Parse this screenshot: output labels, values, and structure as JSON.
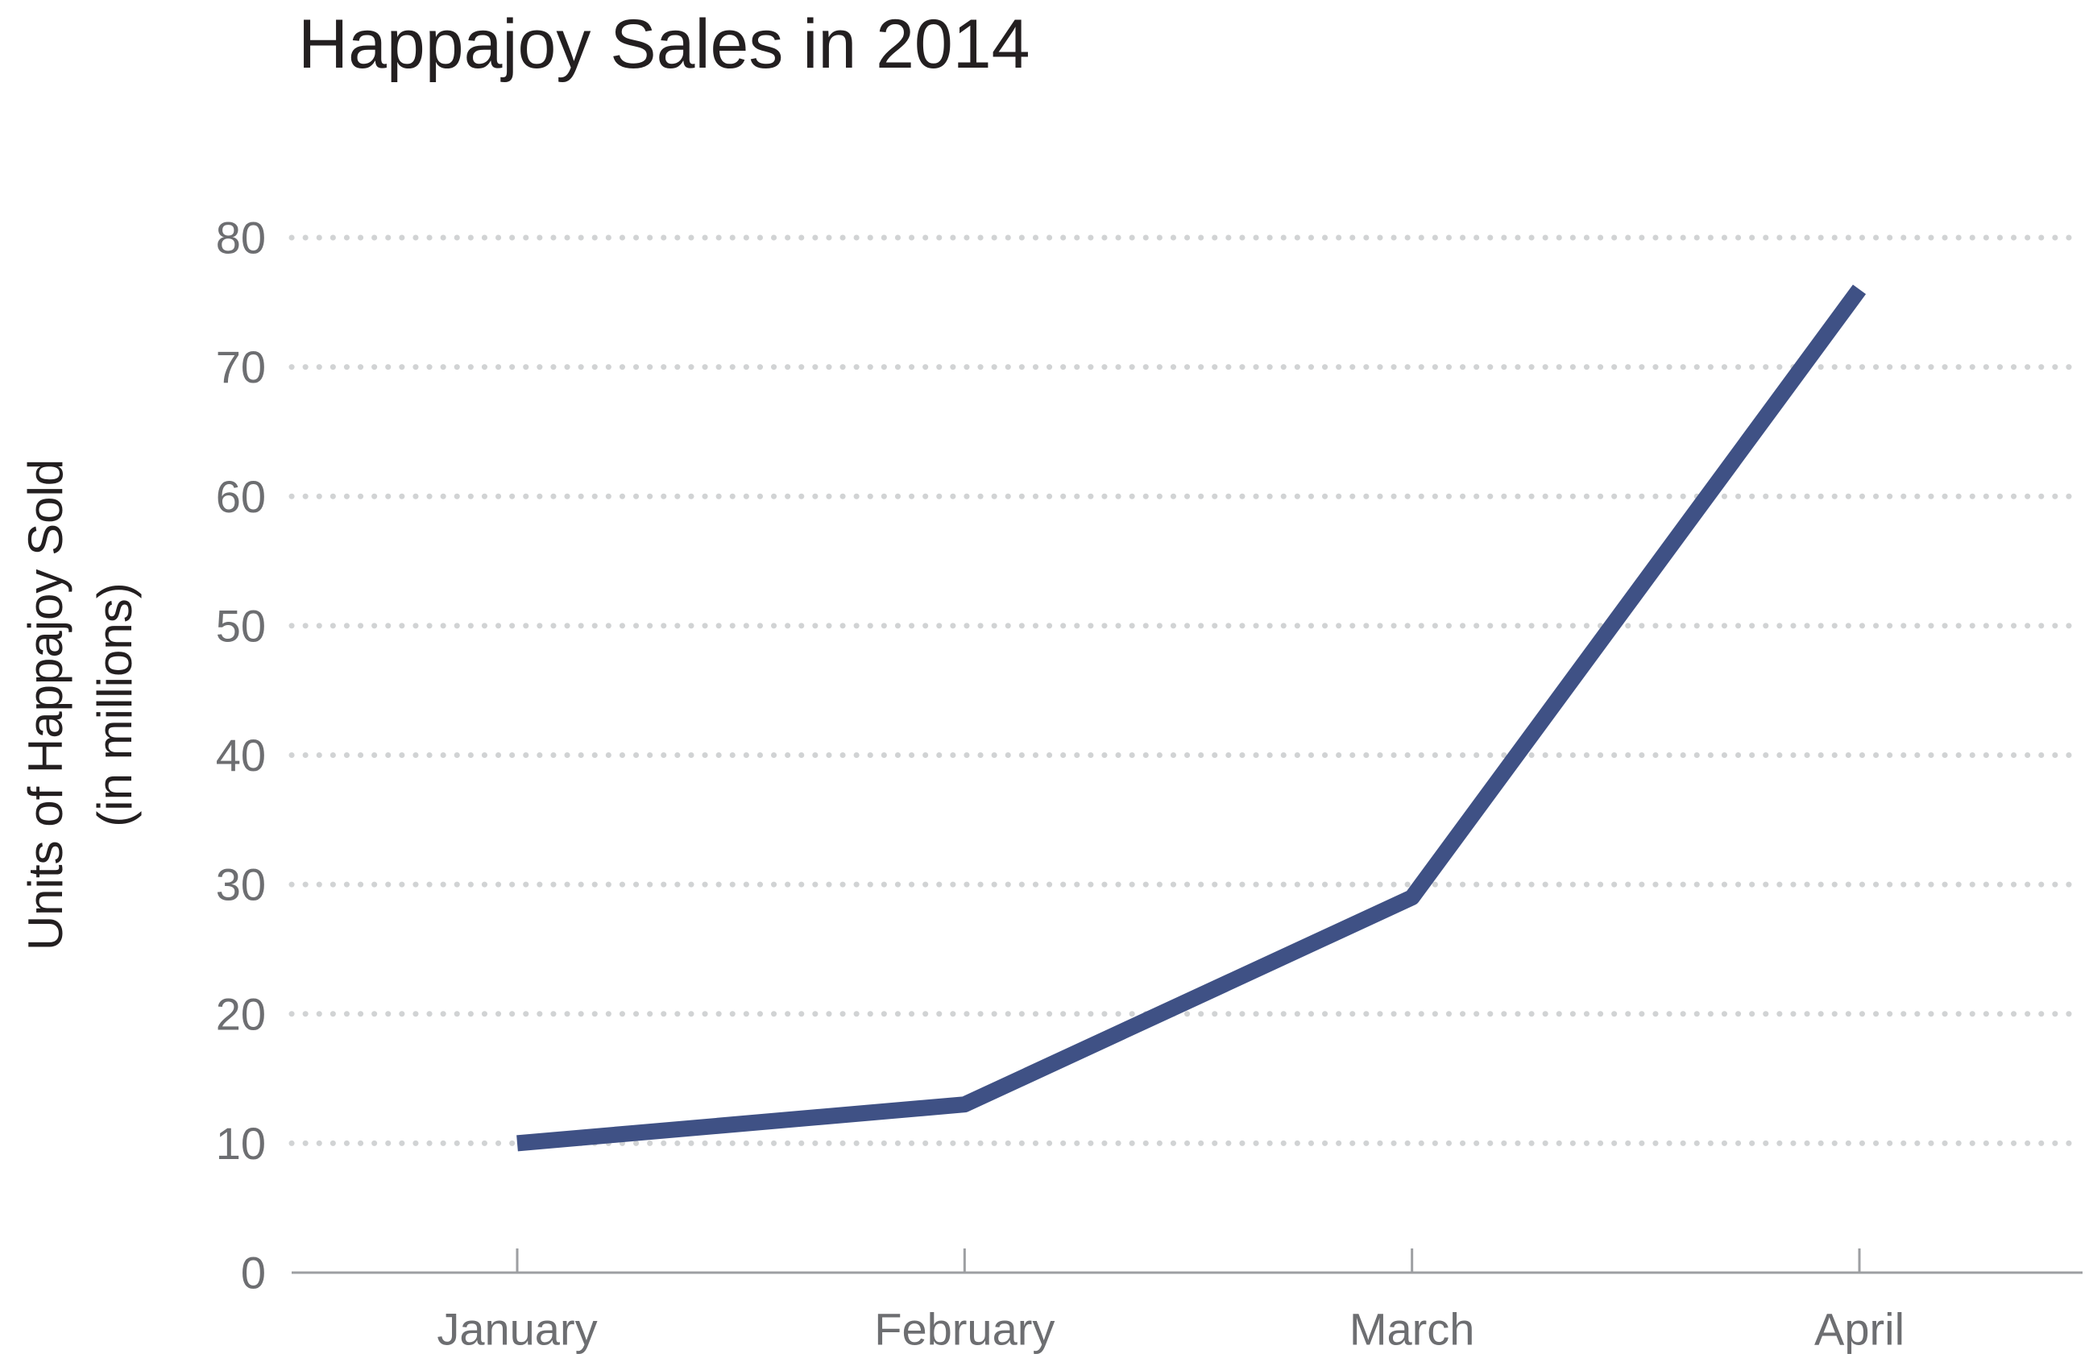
{
  "chart_data": {
    "type": "line",
    "title": "Happajoy Sales in 2014",
    "ylabel_lines": [
      "Units of Happajoy Sold",
      "(in millions)"
    ],
    "xlabel": "",
    "categories": [
      "January",
      "February",
      "March",
      "April"
    ],
    "series": [
      {
        "values": [
          10,
          13,
          29,
          76
        ]
      }
    ],
    "ylim": [
      0,
      80
    ],
    "yticks": [
      0,
      10,
      20,
      30,
      40,
      50,
      60,
      70,
      80
    ],
    "grid": "dotted horizontal",
    "colors": {
      "line": "#3f5185",
      "grid": "#d1d3d4",
      "axis": "#9d9fa2",
      "tick_text": "#6d6e71",
      "title": "#231f20"
    }
  }
}
